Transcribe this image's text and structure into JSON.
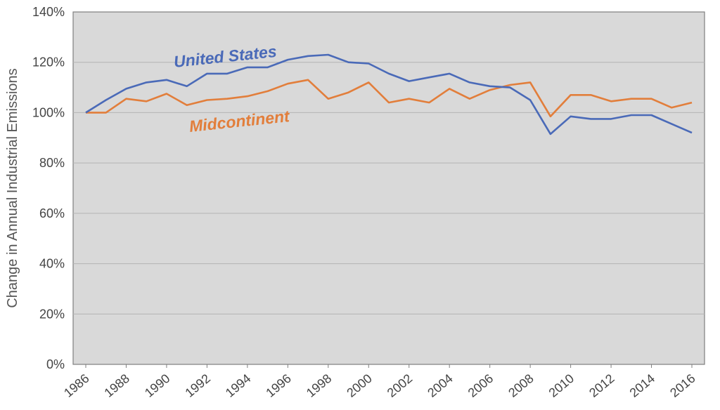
{
  "chart_data": {
    "type": "line",
    "title": "",
    "xlabel": "",
    "ylabel": "Change in Annual Industrial Emissions",
    "ylim": [
      0,
      140
    ],
    "yticks": [
      "0%",
      "20%",
      "40%",
      "60%",
      "80%",
      "100%",
      "120%",
      "140%"
    ],
    "xlim": [
      1986,
      2016
    ],
    "xticks": [
      "1986",
      "1988",
      "1990",
      "1992",
      "1994",
      "1996",
      "1998",
      "2000",
      "2002",
      "2004",
      "2006",
      "2008",
      "2010",
      "2012",
      "2014",
      "2016"
    ],
    "grid": true,
    "legend": "none",
    "x": [
      1986,
      1987,
      1988,
      1989,
      1990,
      1991,
      1992,
      1993,
      1994,
      1995,
      1996,
      1997,
      1998,
      1999,
      2000,
      2001,
      2002,
      2003,
      2004,
      2005,
      2006,
      2007,
      2008,
      2009,
      2010,
      2011,
      2012,
      2013,
      2014,
      2015,
      2016
    ],
    "series": [
      {
        "name": "United States",
        "color": "#4a6ab8",
        "values": [
          100,
          105,
          109.5,
          112,
          113,
          110.5,
          115.5,
          115.5,
          118,
          118,
          121,
          122.5,
          123,
          120,
          119.5,
          115.5,
          112.5,
          114,
          115.5,
          112,
          110.5,
          110,
          105,
          91.5,
          98.5,
          97.5,
          97.5,
          99,
          99,
          95.5,
          92
        ]
      },
      {
        "name": "Midcontinent",
        "color": "#e27e3b",
        "values": [
          100,
          100,
          105.5,
          104.5,
          107.5,
          103,
          105,
          105.5,
          106.5,
          108.5,
          111.5,
          113,
          105.5,
          108,
          112,
          104,
          105.5,
          104,
          109.5,
          105.5,
          109,
          111,
          112,
          98.5,
          107,
          107,
          104.5,
          105.5,
          105.5,
          102,
          104
        ]
      }
    ],
    "annotations": [
      "United States",
      "Midcontinent"
    ],
    "plot_background": "#d9d9d9",
    "gridline_color": "#b3b3b3"
  }
}
